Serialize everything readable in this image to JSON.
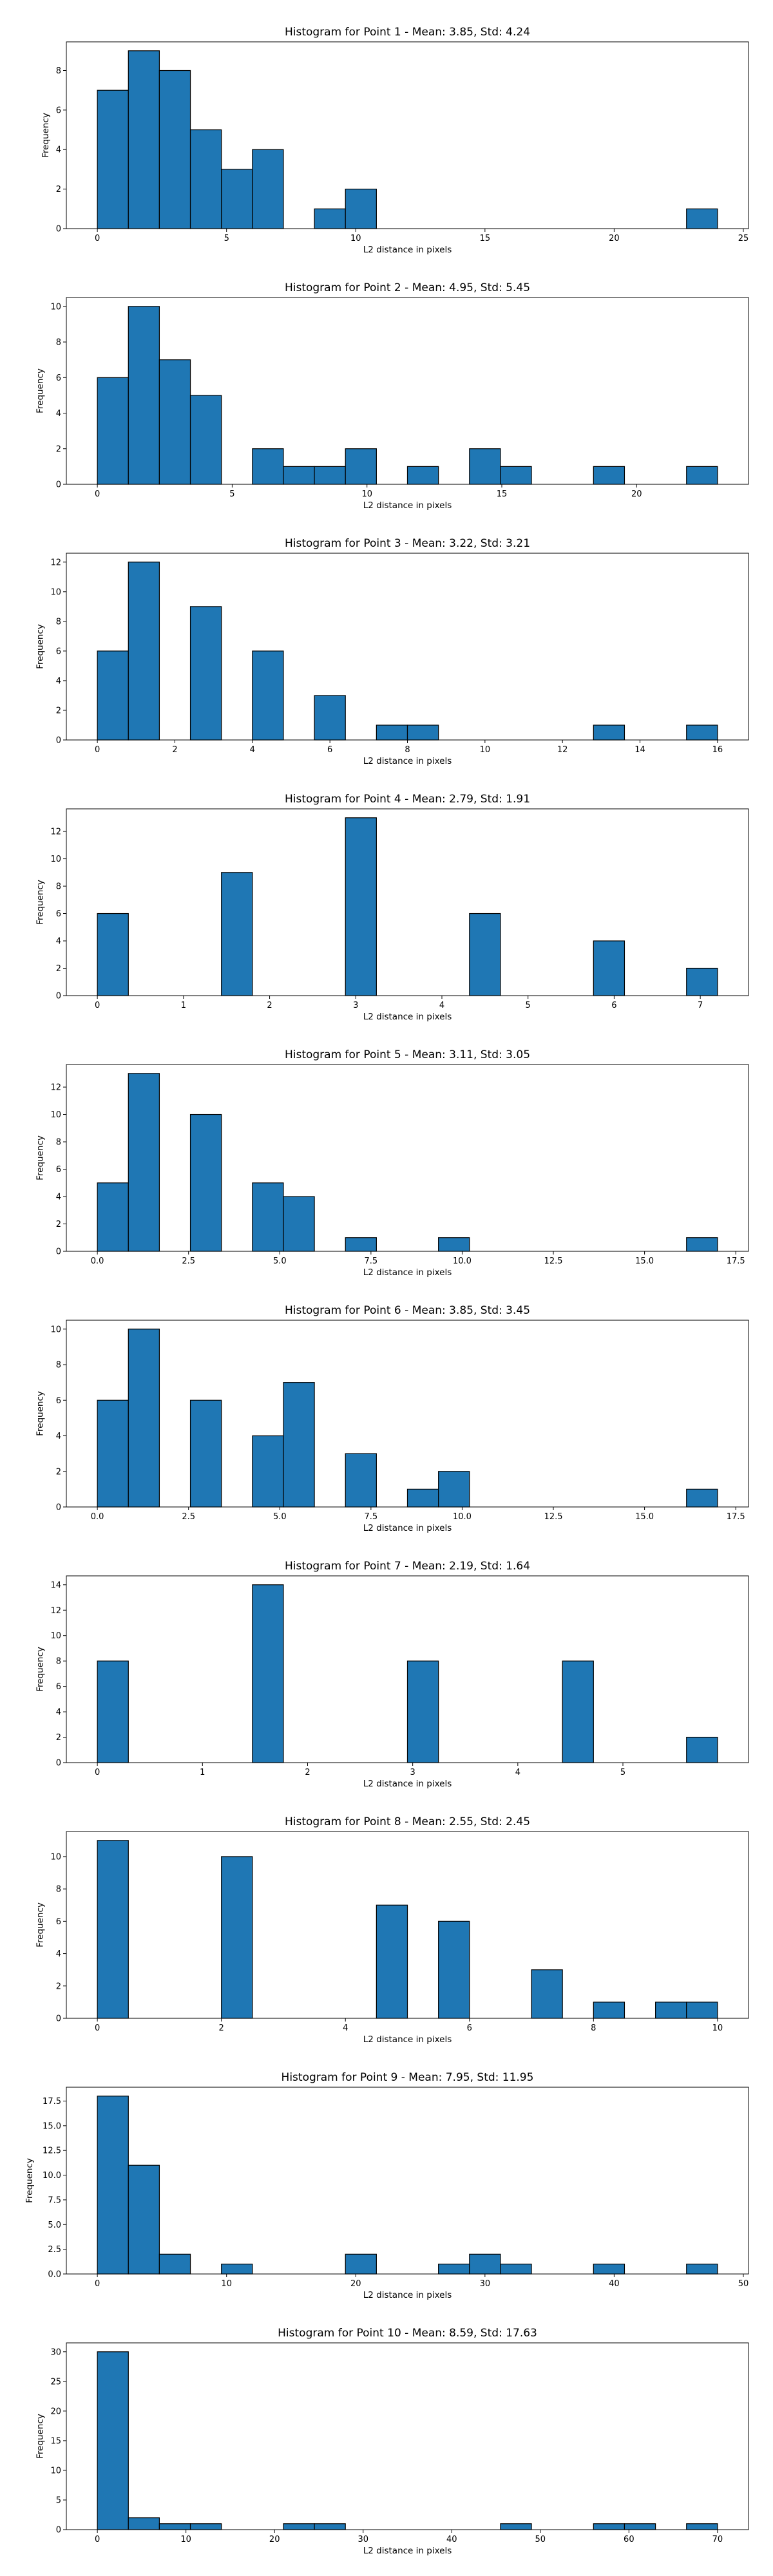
{
  "chart_data": [
    {
      "type": "bar",
      "title": "Histogram for Point 1 - Mean: 3.85, Std: 4.24",
      "xlabel": "L2 distance in pixels",
      "ylabel": "Frequency",
      "xlim": [
        -1.2,
        25.2
      ],
      "ylim": [
        0,
        9.45
      ],
      "xticks": [
        0,
        5,
        10,
        15,
        20,
        25
      ],
      "xtick_labels": [
        "0",
        "5",
        "10",
        "15",
        "20",
        "25"
      ],
      "yticks": [
        0,
        2,
        4,
        6,
        8
      ],
      "ytick_labels": [
        "0",
        "2",
        "4",
        "6",
        "8"
      ],
      "bin_edges": [
        0,
        1.2,
        2.4,
        3.6,
        4.8,
        6.0,
        7.2,
        8.4,
        9.6,
        10.8,
        12.0,
        13.2,
        14.4,
        15.6,
        16.8,
        18.0,
        19.2,
        20.4,
        21.6,
        22.8,
        24.0
      ],
      "counts": [
        7,
        9,
        8,
        5,
        3,
        4,
        0,
        1,
        2,
        0,
        0,
        0,
        0,
        0,
        0,
        0,
        0,
        0,
        0,
        1
      ],
      "grid": false
    },
    {
      "type": "bar",
      "title": "Histogram for Point 2 - Mean: 4.95, Std: 5.45",
      "xlabel": "L2 distance in pixels",
      "ylabel": "Frequency",
      "xlim": [
        -1.15,
        24.15
      ],
      "ylim": [
        0,
        10.5
      ],
      "xticks": [
        0,
        5,
        10,
        15,
        20
      ],
      "xtick_labels": [
        "0",
        "5",
        "10",
        "15",
        "20"
      ],
      "yticks": [
        0,
        2,
        4,
        6,
        8,
        10
      ],
      "ytick_labels": [
        "0",
        "2",
        "4",
        "6",
        "8",
        "10"
      ],
      "bin_edges": [
        0,
        1.15,
        2.3,
        3.45,
        4.6,
        5.75,
        6.9,
        8.05,
        9.2,
        10.35,
        11.5,
        12.65,
        13.8,
        14.95,
        16.1,
        17.25,
        18.4,
        19.55,
        20.7,
        21.85,
        23.0
      ],
      "counts": [
        6,
        10,
        7,
        5,
        0,
        2,
        1,
        1,
        2,
        0,
        1,
        0,
        2,
        1,
        0,
        0,
        1,
        0,
        0,
        1
      ],
      "grid": false
    },
    {
      "type": "bar",
      "title": "Histogram for Point 3 - Mean: 3.22, Std: 3.21",
      "xlabel": "L2 distance in pixels",
      "ylabel": "Frequency",
      "xlim": [
        -0.8,
        16.8
      ],
      "ylim": [
        0,
        12.6
      ],
      "xticks": [
        0,
        2,
        4,
        6,
        8,
        10,
        12,
        14,
        16
      ],
      "xtick_labels": [
        "0",
        "2",
        "4",
        "6",
        "8",
        "10",
        "12",
        "14",
        "16"
      ],
      "yticks": [
        0,
        2,
        4,
        6,
        8,
        10,
        12
      ],
      "ytick_labels": [
        "0",
        "2",
        "4",
        "6",
        "8",
        "10",
        "12"
      ],
      "bin_edges": [
        0,
        0.8,
        1.6,
        2.4,
        3.2,
        4.0,
        4.8,
        5.6,
        6.4,
        7.2,
        8.0,
        8.8,
        9.6,
        10.4,
        11.2,
        12.0,
        12.8,
        13.6,
        14.4,
        15.2,
        16.0
      ],
      "counts": [
        6,
        12,
        0,
        9,
        0,
        6,
        0,
        3,
        0,
        1,
        1,
        0,
        0,
        0,
        0,
        0,
        1,
        0,
        0,
        1
      ],
      "grid": false
    },
    {
      "type": "bar",
      "title": "Histogram for Point 4 - Mean: 2.79, Std: 1.91",
      "xlabel": "L2 distance in pixels",
      "ylabel": "Frequency",
      "xlim": [
        -0.36,
        7.56
      ],
      "ylim": [
        0,
        13.65
      ],
      "xticks": [
        0,
        1,
        2,
        3,
        4,
        5,
        6,
        7
      ],
      "xtick_labels": [
        "0",
        "1",
        "2",
        "3",
        "4",
        "5",
        "6",
        "7"
      ],
      "yticks": [
        0,
        2,
        4,
        6,
        8,
        10,
        12
      ],
      "ytick_labels": [
        "0",
        "2",
        "4",
        "6",
        "8",
        "10",
        "12"
      ],
      "bin_edges": [
        0,
        0.36,
        0.72,
        1.08,
        1.44,
        1.8,
        2.16,
        2.52,
        2.88,
        3.24,
        3.6,
        3.96,
        4.32,
        4.68,
        5.04,
        5.4,
        5.76,
        6.12,
        6.48,
        6.84,
        7.2
      ],
      "counts": [
        6,
        0,
        0,
        0,
        9,
        0,
        0,
        0,
        13,
        0,
        0,
        0,
        6,
        0,
        0,
        0,
        4,
        0,
        0,
        2
      ],
      "grid": false
    },
    {
      "type": "bar",
      "title": "Histogram for Point 5 - Mean: 3.11, Std: 3.05",
      "xlabel": "L2 distance in pixels",
      "ylabel": "Frequency",
      "xlim": [
        -0.85,
        17.85
      ],
      "ylim": [
        0,
        13.65
      ],
      "xticks": [
        0,
        2.5,
        5,
        7.5,
        10,
        12.5,
        15,
        17.5
      ],
      "xtick_labels": [
        "0.0",
        "2.5",
        "5.0",
        "7.5",
        "10.0",
        "12.5",
        "15.0",
        "17.5"
      ],
      "yticks": [
        0,
        2,
        4,
        6,
        8,
        10,
        12
      ],
      "ytick_labels": [
        "0",
        "2",
        "4",
        "6",
        "8",
        "10",
        "12"
      ],
      "bin_edges": [
        0,
        0.85,
        1.7,
        2.55,
        3.4,
        4.25,
        5.1,
        5.95,
        6.8,
        7.65,
        8.5,
        9.35,
        10.2,
        11.05,
        11.9,
        12.75,
        13.6,
        14.45,
        15.3,
        16.15,
        17.0
      ],
      "counts": [
        5,
        13,
        0,
        10,
        0,
        5,
        4,
        0,
        1,
        0,
        0,
        1,
        0,
        0,
        0,
        0,
        0,
        0,
        0,
        1
      ],
      "grid": false
    },
    {
      "type": "bar",
      "title": "Histogram for Point 6 - Mean: 3.85, Std: 3.45",
      "xlabel": "L2 distance in pixels",
      "ylabel": "Frequency",
      "xlim": [
        -0.85,
        17.85
      ],
      "ylim": [
        0,
        10.5
      ],
      "xticks": [
        0,
        2.5,
        5,
        7.5,
        10,
        12.5,
        15,
        17.5
      ],
      "xtick_labels": [
        "0.0",
        "2.5",
        "5.0",
        "7.5",
        "10.0",
        "12.5",
        "15.0",
        "17.5"
      ],
      "yticks": [
        0,
        2,
        4,
        6,
        8,
        10
      ],
      "ytick_labels": [
        "0",
        "2",
        "4",
        "6",
        "8",
        "10"
      ],
      "bin_edges": [
        0,
        0.85,
        1.7,
        2.55,
        3.4,
        4.25,
        5.1,
        5.95,
        6.8,
        7.65,
        8.5,
        9.35,
        10.2,
        11.05,
        11.9,
        12.75,
        13.6,
        14.45,
        15.3,
        16.15,
        17.0
      ],
      "counts": [
        6,
        10,
        0,
        6,
        0,
        4,
        7,
        0,
        3,
        0,
        1,
        2,
        0,
        0,
        0,
        0,
        0,
        0,
        0,
        1
      ],
      "grid": false
    },
    {
      "type": "bar",
      "title": "Histogram for Point 7 - Mean: 2.19, Std: 1.64",
      "xlabel": "L2 distance in pixels",
      "ylabel": "Frequency",
      "xlim": [
        -0.295,
        6.195
      ],
      "ylim": [
        0,
        14.7
      ],
      "xticks": [
        0,
        1,
        2,
        3,
        4,
        5
      ],
      "xtick_labels": [
        "0",
        "1",
        "2",
        "3",
        "4",
        "5"
      ],
      "yticks": [
        0,
        2,
        4,
        6,
        8,
        10,
        12,
        14
      ],
      "ytick_labels": [
        "0",
        "2",
        "4",
        "6",
        "8",
        "10",
        "12",
        "14"
      ],
      "bin_edges": [
        0,
        0.295,
        0.59,
        0.885,
        1.18,
        1.475,
        1.77,
        2.065,
        2.36,
        2.655,
        2.95,
        3.245,
        3.54,
        3.835,
        4.13,
        4.425,
        4.72,
        5.015,
        5.31,
        5.605,
        5.9
      ],
      "counts": [
        8,
        0,
        0,
        0,
        0,
        14,
        0,
        0,
        0,
        0,
        8,
        0,
        0,
        0,
        0,
        8,
        0,
        0,
        0,
        2
      ],
      "grid": false
    },
    {
      "type": "bar",
      "title": "Histogram for Point 8 - Mean: 2.55, Std: 2.45",
      "xlabel": "L2 distance in pixels",
      "ylabel": "Frequency",
      "xlim": [
        -0.5,
        10.5
      ],
      "ylim": [
        0,
        11.55
      ],
      "xticks": [
        0,
        2,
        4,
        6,
        8,
        10
      ],
      "xtick_labels": [
        "0",
        "2",
        "4",
        "6",
        "8",
        "10"
      ],
      "yticks": [
        0,
        2,
        4,
        6,
        8,
        10
      ],
      "ytick_labels": [
        "0",
        "2",
        "4",
        "6",
        "8",
        "10"
      ],
      "bin_edges": [
        0,
        0.5,
        1.0,
        1.5,
        2.0,
        2.5,
        3.0,
        3.5,
        4.0,
        4.5,
        5.0,
        5.5,
        6.0,
        6.5,
        7.0,
        7.5,
        8.0,
        8.5,
        9.0,
        9.5,
        10.0
      ],
      "counts": [
        11,
        0,
        0,
        0,
        10,
        0,
        0,
        0,
        0,
        7,
        0,
        6,
        0,
        0,
        3,
        0,
        1,
        0,
        1,
        1
      ],
      "grid": false
    },
    {
      "type": "bar",
      "title": "Histogram for Point 9 - Mean: 7.95, Std: 11.95",
      "xlabel": "L2 distance in pixels",
      "ylabel": "Frequency",
      "xlim": [
        -2.4,
        50.4
      ],
      "ylim": [
        0,
        18.9
      ],
      "xticks": [
        0,
        10,
        20,
        30,
        40,
        50
      ],
      "xtick_labels": [
        "0",
        "10",
        "20",
        "30",
        "40",
        "50"
      ],
      "yticks": [
        0,
        2.5,
        5,
        7.5,
        10,
        12.5,
        15,
        17.5
      ],
      "ytick_labels": [
        "0.0",
        "2.5",
        "5.0",
        "7.5",
        "10.0",
        "12.5",
        "15.0",
        "17.5"
      ],
      "bin_edges": [
        0,
        2.4,
        4.8,
        7.2,
        9.6,
        12.0,
        14.4,
        16.8,
        19.2,
        21.6,
        24.0,
        26.4,
        28.8,
        31.2,
        33.6,
        36.0,
        38.4,
        40.8,
        43.2,
        45.6,
        48.0
      ],
      "counts": [
        18,
        11,
        2,
        0,
        1,
        0,
        0,
        0,
        2,
        0,
        0,
        1,
        2,
        1,
        0,
        0,
        1,
        0,
        0,
        1
      ],
      "grid": false
    },
    {
      "type": "bar",
      "title": "Histogram for Point 10 - Mean: 8.59, Std: 17.63",
      "xlabel": "L2 distance in pixels",
      "ylabel": "Frequency",
      "xlim": [
        -3.5,
        73.5
      ],
      "ylim": [
        0,
        31.5
      ],
      "xticks": [
        0,
        10,
        20,
        30,
        40,
        50,
        60,
        70
      ],
      "xtick_labels": [
        "0",
        "10",
        "20",
        "30",
        "40",
        "50",
        "60",
        "70"
      ],
      "yticks": [
        0,
        5,
        10,
        15,
        20,
        25,
        30
      ],
      "ytick_labels": [
        "0",
        "5",
        "10",
        "15",
        "20",
        "25",
        "30"
      ],
      "bin_edges": [
        0,
        3.5,
        7.0,
        10.5,
        14.0,
        17.5,
        21.0,
        24.5,
        28.0,
        31.5,
        35.0,
        38.5,
        42.0,
        45.5,
        49.0,
        52.5,
        56.0,
        59.5,
        63.0,
        66.5,
        70.0
      ],
      "counts": [
        30,
        2,
        1,
        1,
        0,
        0,
        1,
        1,
        0,
        0,
        0,
        0,
        0,
        1,
        0,
        0,
        1,
        1,
        0,
        1
      ],
      "grid": false
    }
  ]
}
